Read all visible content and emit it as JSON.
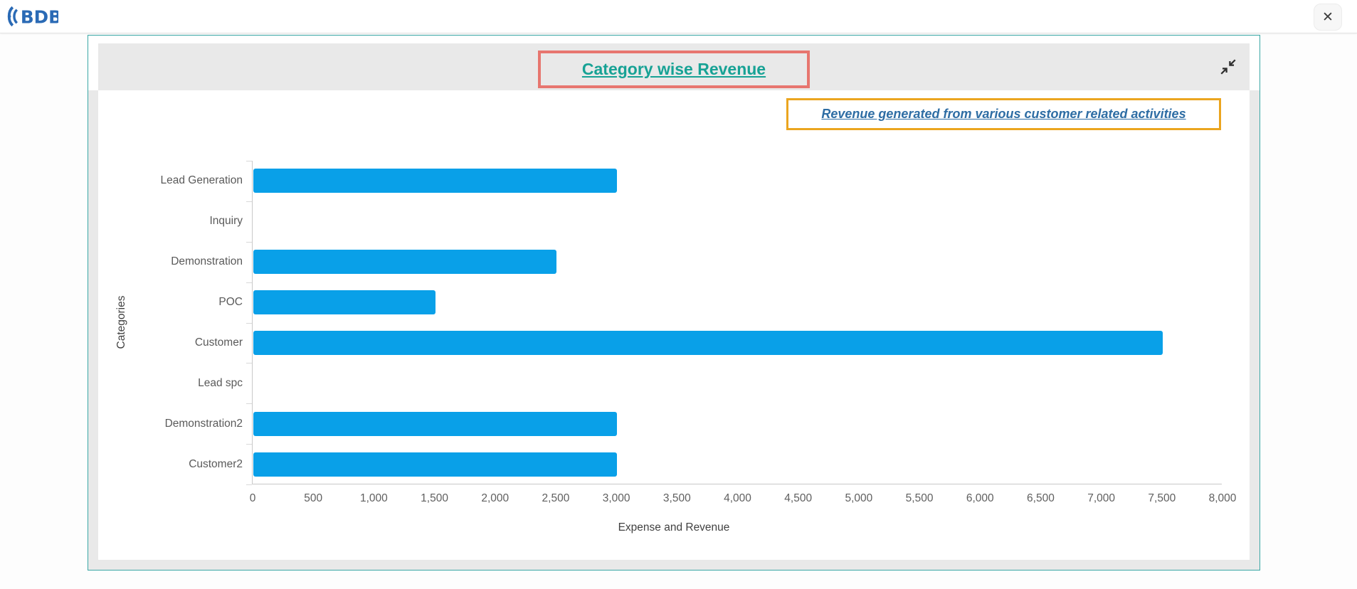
{
  "topbar": {
    "logo": "BDB",
    "close_label": "✕"
  },
  "panel": {
    "title": "Category wise Revenue",
    "subtitle": "Revenue generated from various customer related activities"
  },
  "chart_data": {
    "type": "bar",
    "orientation": "horizontal",
    "title": "Category wise Revenue",
    "subtitle": "Revenue generated from various customer related activities",
    "categories": [
      "Lead Generation",
      "Inquiry",
      "Demonstration",
      "POC",
      "Customer",
      "Lead spc",
      "Demonstration2",
      "Customer2"
    ],
    "values": [
      3000,
      0,
      2500,
      1500,
      7500,
      0,
      3000,
      3000
    ],
    "xlabel": "Expense and Revenue",
    "ylabel": "Categories",
    "xlim": [
      0,
      8000
    ],
    "xtick_interval": 500,
    "xtick_labels": [
      "0",
      "500",
      "1,000",
      "1,500",
      "2,000",
      "2,500",
      "3,000",
      "3,500",
      "4,000",
      "4,500",
      "5,000",
      "5,500",
      "6,000",
      "6,500",
      "7,000",
      "7,500",
      "8,000"
    ],
    "grid": false,
    "legend": false,
    "bar_color": "#09a0e8"
  },
  "colors": {
    "panel_border": "#3aa7a5",
    "header_strip_bg": "#e9e9e9",
    "title_text": "#17a295",
    "title_box_border": "#e7766f",
    "subtitle_text": "#2e6da4",
    "subtitle_box_border": "#eba51f",
    "bar": "#09a0e8",
    "axis_line": "#c9c9c9",
    "tick_text": "#5f5f5f",
    "logo_blue": "#2a6ab5",
    "icon_dark": "#2f2f2f"
  }
}
